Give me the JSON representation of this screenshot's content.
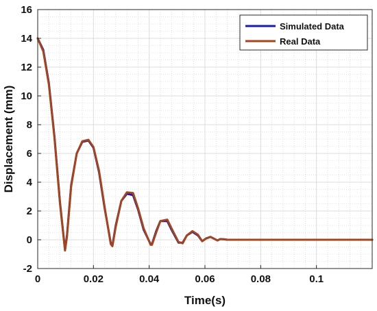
{
  "chart_data": {
    "type": "line",
    "title": "",
    "xlabel": "Time(s)",
    "ylabel": "Displacement (mm)",
    "xlim": [
      0,
      0.12
    ],
    "ylim": [
      -2,
      16
    ],
    "x_ticks": [
      0,
      0.02,
      0.04,
      0.06,
      0.08,
      0.1
    ],
    "x_tick_labels": [
      "0",
      "0.02",
      "0.04",
      "0.06",
      "0.08",
      "0.1"
    ],
    "y_ticks": [
      -2,
      0,
      2,
      4,
      6,
      8,
      10,
      12,
      14,
      16
    ],
    "y_tick_labels": [
      "-2",
      "0",
      "2",
      "4",
      "6",
      "8",
      "10",
      "12",
      "14",
      "16"
    ],
    "grid": true,
    "minor_grid": true,
    "legend_position": "top-right",
    "series": [
      {
        "name": "Simulated Data",
        "color": "#1a1aa8",
        "x": [
          0,
          0.002,
          0.004,
          0.006,
          0.008,
          0.0098,
          0.0105,
          0.012,
          0.014,
          0.016,
          0.0182,
          0.02,
          0.022,
          0.024,
          0.0262,
          0.0268,
          0.028,
          0.03,
          0.032,
          0.0342,
          0.036,
          0.038,
          0.0405,
          0.041,
          0.0425,
          0.044,
          0.0465,
          0.048,
          0.0505,
          0.052,
          0.0535,
          0.0555,
          0.0575,
          0.059,
          0.0605,
          0.062,
          0.0635,
          0.0645,
          0.0655,
          0.067,
          0.068,
          0.07,
          0.08,
          0.09,
          0.1,
          0.11,
          0.12
        ],
        "y": [
          14,
          13.2,
          10.9,
          7.2,
          2.6,
          -0.7,
          0.3,
          3.8,
          6.0,
          6.8,
          6.9,
          6.4,
          4.7,
          2.2,
          -0.2,
          -0.4,
          1.0,
          2.7,
          3.2,
          3.1,
          2.1,
          0.7,
          -0.3,
          -0.3,
          0.6,
          1.3,
          1.3,
          0.7,
          -0.2,
          -0.2,
          0.3,
          0.55,
          0.3,
          -0.1,
          0.1,
          0.2,
          0.05,
          -0.05,
          0.05,
          0.03,
          0,
          0,
          0,
          0,
          0,
          0,
          0
        ]
      },
      {
        "name": "Real Data",
        "color": "#a3451e",
        "x": [
          0,
          0.002,
          0.004,
          0.006,
          0.008,
          0.0098,
          0.0105,
          0.012,
          0.014,
          0.016,
          0.0182,
          0.02,
          0.022,
          0.024,
          0.0262,
          0.0268,
          0.028,
          0.03,
          0.032,
          0.0342,
          0.036,
          0.038,
          0.0405,
          0.041,
          0.0425,
          0.044,
          0.0465,
          0.048,
          0.0505,
          0.052,
          0.0535,
          0.0555,
          0.0575,
          0.059,
          0.0605,
          0.062,
          0.0635,
          0.0645,
          0.0655,
          0.067,
          0.068,
          0.07,
          0.08,
          0.09,
          0.1,
          0.11,
          0.12
        ],
        "y": [
          14,
          13.1,
          10.8,
          7.1,
          2.5,
          -0.75,
          0.2,
          3.7,
          6.0,
          6.85,
          6.95,
          6.45,
          4.8,
          2.3,
          -0.3,
          -0.45,
          0.9,
          2.7,
          3.3,
          3.25,
          2.2,
          0.8,
          -0.35,
          -0.35,
          0.5,
          1.3,
          1.4,
          0.8,
          -0.15,
          -0.25,
          0.3,
          0.6,
          0.35,
          -0.1,
          0.1,
          0.2,
          0.05,
          -0.05,
          0.05,
          0.03,
          0,
          0,
          0,
          0,
          0,
          0,
          0
        ]
      }
    ]
  }
}
